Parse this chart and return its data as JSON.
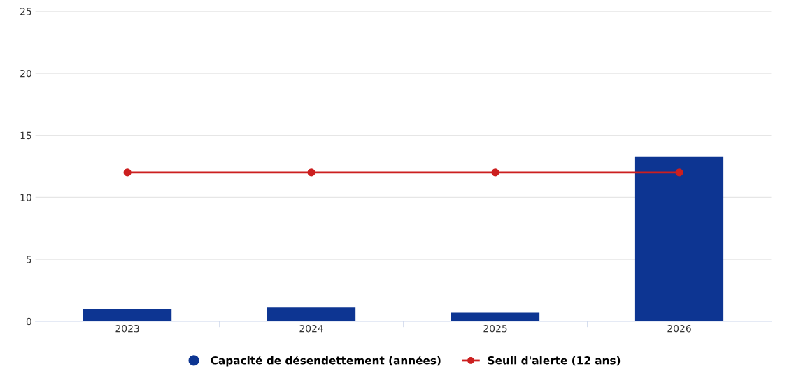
{
  "chart_data": {
    "type": "bar",
    "categories": [
      "2023",
      "2024",
      "2025",
      "2026"
    ],
    "series": [
      {
        "name": "Capacité de désendettement (années)",
        "color": "#0d3592",
        "values": [
          1.0,
          1.1,
          0.7,
          13.3
        ]
      },
      {
        "name": "Seuil d'alerte (12 ans)",
        "type": "line",
        "color": "#cc1f1f",
        "marker": "circle",
        "values": [
          12,
          12,
          12,
          12
        ]
      }
    ],
    "ylim": [
      0,
      25
    ],
    "yticks": [
      0,
      5,
      10,
      15,
      20,
      25
    ],
    "grid": "y",
    "legend": "bottom"
  }
}
